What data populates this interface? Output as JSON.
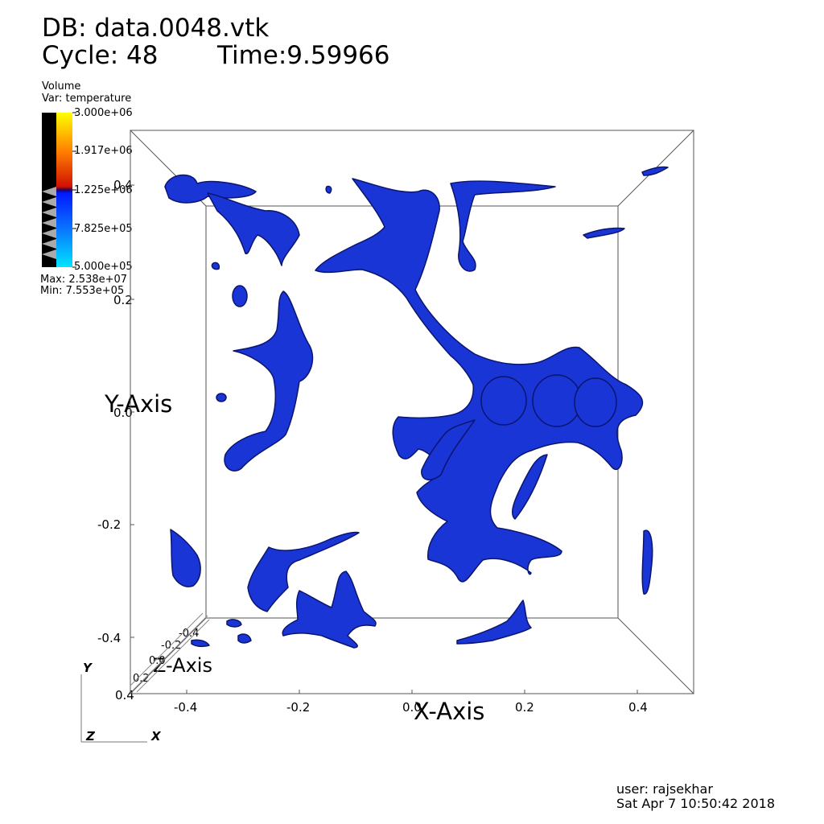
{
  "header": {
    "db_label": "DB: data.0048.vtk",
    "cycle_label": "Cycle: 48",
    "time_label": "Time:9.59966"
  },
  "legend": {
    "plot_type": "Volume",
    "variable": "Var: temperature",
    "ticks": [
      "3.000e+06",
      "1.917e+06",
      "1.225e+06",
      "7.825e+05",
      "5.000e+05"
    ],
    "max_label": "Max:  2.538e+07",
    "min_label": "Min:  7.553e+05",
    "colors": {
      "top": "#ffff00",
      "orange": "#ff8000",
      "red": "#d01000",
      "blue": "#0018ff",
      "cyan": "#00e5ff",
      "opacity_bar": "#000000"
    }
  },
  "axes": {
    "y_title": "Y-Axis",
    "x_title": "X-Axis",
    "z_title": "Z-Axis",
    "y_ticks": [
      "0.4",
      "0.2",
      "0.0",
      "-0.2",
      "-0.4"
    ],
    "x_ticks": [
      "-0.4",
      "-0.2",
      "0.0",
      "0.2",
      "0.4"
    ],
    "z_ticks": [
      "-0.4",
      "-0.2",
      "0.0",
      "0.2",
      "0.4"
    ]
  },
  "triad": {
    "y": "Y",
    "z": "Z",
    "x": "X"
  },
  "footer": {
    "user": "user: rajsekhar",
    "timestamp": "Sat Apr  7 10:50:42 2018"
  },
  "render": {
    "surface_color": "#1a35d6",
    "surface_edge": "#0a1570",
    "box_color": "#555555"
  }
}
